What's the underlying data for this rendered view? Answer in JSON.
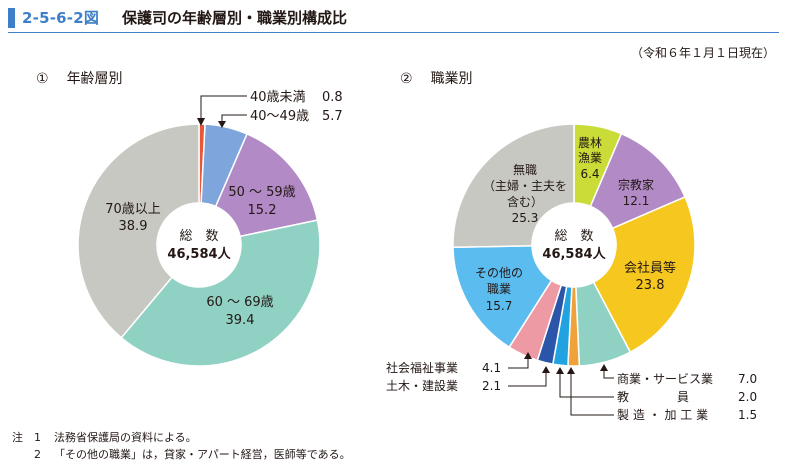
{
  "header": {
    "figure_number": "2-5-6-2図",
    "title": "保護司の年齢層別・職業別構成比"
  },
  "date_note": "（令和６年１月１日現在）",
  "colors": {
    "accent": "#3f7ec8"
  },
  "chart_data": [
    {
      "type": "pie",
      "title_number": "①",
      "title": "年齢層別",
      "center_label": "総　数",
      "center_value": "46,584人",
      "slices": [
        {
          "label": "40歳未満",
          "value": 0.8,
          "display": "0.8",
          "color": "#e8573a"
        },
        {
          "label": "40～49歳",
          "value": 5.7,
          "display": "5.7",
          "color": "#7ea6dc"
        },
        {
          "label": "50 ～ 59歳",
          "value": 15.2,
          "display": "15.2",
          "color": "#b28ac6"
        },
        {
          "label": "60 ～ 69歳",
          "value": 39.4,
          "display": "39.4",
          "color": "#8fd1c3"
        },
        {
          "label": "70歳以上",
          "value": 38.9,
          "display": "38.9",
          "color": "#c8c8c2"
        }
      ]
    },
    {
      "type": "pie",
      "title_number": "②",
      "title": "職業別",
      "center_label": "総　数",
      "center_value": "46,584人",
      "slices": [
        {
          "label": "農林漁業",
          "value": 6.4,
          "display": "6.4",
          "color": "#c9dc37"
        },
        {
          "label": "宗教家",
          "value": 12.1,
          "display": "12.1",
          "color": "#b28ac6"
        },
        {
          "label": "会社員等",
          "value": 23.8,
          "display": "23.8",
          "color": "#f6c81f"
        },
        {
          "label": "商業・サービス業",
          "value": 7.0,
          "display": "7.0",
          "color": "#8fd1c3"
        },
        {
          "label": "製造・加工業",
          "value": 1.5,
          "display": "1.5",
          "color": "#f0a23a"
        },
        {
          "label": "教員",
          "value": 2.0,
          "display": "2.0",
          "color": "#20a3e0"
        },
        {
          "label": "土木・建設業",
          "value": 2.1,
          "display": "2.1",
          "color": "#2a55a8"
        },
        {
          "label": "社会福祉事業",
          "value": 4.1,
          "display": "4.1",
          "color": "#ee9aa4"
        },
        {
          "label": "その他の職業",
          "value": 15.7,
          "display": "15.7",
          "color": "#5bbcef"
        },
        {
          "label": "無職（主婦・主夫を含む）",
          "value": 25.3,
          "display": "25.3",
          "color": "#c8c8c2"
        }
      ]
    }
  ],
  "labels": {
    "c1": {
      "lt40_name": "40歳未満",
      "lt40_val": "0.8",
      "s40_name": "40～49歳",
      "s40_val": "5.7",
      "s50_name": "50 ～ 59歳",
      "s50_val": "15.2",
      "s60_name": "60 ～ 69歳",
      "s60_val": "39.4",
      "s70_name": "70歳以上",
      "s70_val": "38.9"
    },
    "c2": {
      "farm_l1": "農林",
      "farm_l2": "漁業",
      "farm_val": "6.4",
      "rel_name": "宗教家",
      "rel_val": "12.1",
      "comp_name": "会社員等",
      "comp_val": "23.8",
      "unemp_l1": "無職",
      "unemp_l2": "（主婦・主夫を",
      "unemp_l3": "含む）",
      "unemp_val": "25.3",
      "other_l1": "その他の",
      "other_l2": "職業",
      "other_val": "15.7",
      "welfare_name": "社会福祉事業",
      "welfare_val": "4.1",
      "civil_name": "土木・建設業",
      "civil_val": "2.1",
      "comm_name": "商業・サービス業",
      "comm_val": "7.0",
      "teach_name": "教　　　　員",
      "teach_val": "2.0",
      "manu_name": "製 造 ・ 加 工 業",
      "manu_val": "1.5"
    }
  },
  "notes": {
    "lead": "注",
    "items": [
      {
        "num": "1",
        "text": "法務省保護局の資料による。"
      },
      {
        "num": "2",
        "text": "「その他の職業」は，貸家・アパート経営，医師等である。"
      }
    ]
  }
}
